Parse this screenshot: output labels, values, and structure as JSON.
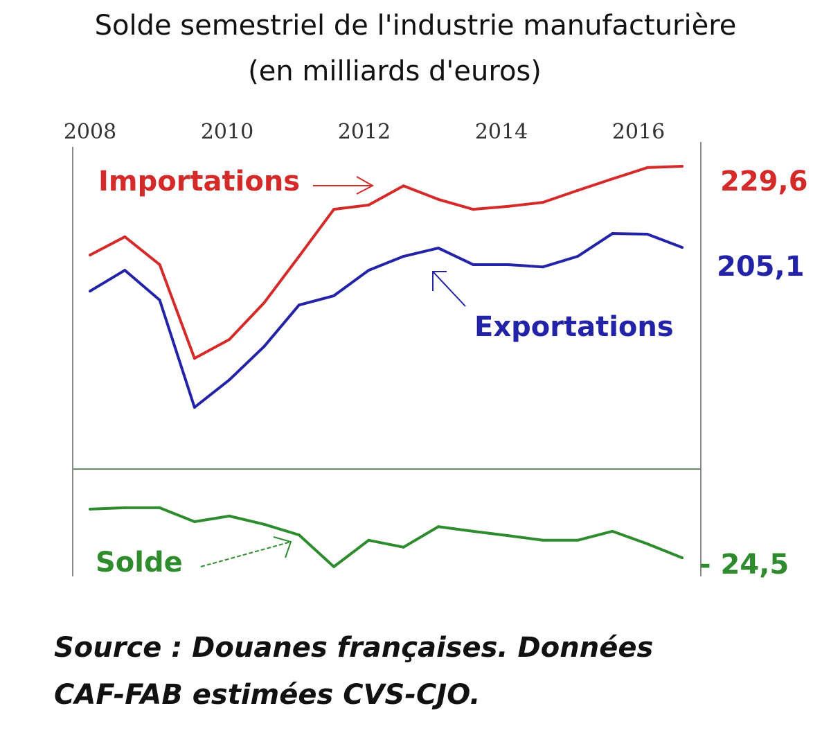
{
  "title": "Solde semestriel de l'industrie manufacturière",
  "subtitle": "(en milliards d'euros)",
  "source_line1": "Source : Douanes françaises. Données",
  "source_line2": "CAF-FAB estimées CVS-CJO.",
  "chart_data": {
    "type": "line",
    "title": "Solde semestriel de l'industrie manufacturière (en milliards d'euros)",
    "x_ticks": [
      "2008",
      "2010",
      "2012",
      "2014",
      "2016"
    ],
    "x": [
      "2008 S1",
      "2008 S2",
      "2009 S1",
      "2009 S2",
      "2010 S1",
      "2010 S2",
      "2011 S1",
      "2011 S2",
      "2012 S1",
      "2012 S2",
      "2013 S1",
      "2013 S2",
      "2014 S1",
      "2014 S2",
      "2015 S1",
      "2015 S2",
      "2016 S1",
      "2016 S2"
    ],
    "grid": false,
    "series": [
      {
        "name": "Importations",
        "color": "#d42a2a",
        "end_label": "229,6",
        "values": [
          202.8,
          208.3,
          199.9,
          171.6,
          177.3,
          188.4,
          202.4,
          216.6,
          217.9,
          223.7,
          219.6,
          216.6,
          217.5,
          218.7,
          222.3,
          225.8,
          229.2,
          229.6
        ]
      },
      {
        "name": "Exportations",
        "color": "#2323a8",
        "end_label": "205,1",
        "values": [
          191.9,
          198.2,
          189.2,
          156.8,
          165.1,
          175.2,
          187.7,
          190.5,
          198.2,
          202.4,
          204.9,
          199.9,
          199.9,
          199.2,
          202.4,
          209.3,
          209.1,
          205.1
        ]
      },
      {
        "name": "Solde",
        "color": "#2e8b2e",
        "end_label": "- 24,5",
        "values": [
          -9.8,
          -9.4,
          -9.4,
          -13.6,
          -11.9,
          -14.4,
          -17.6,
          -27.2,
          -19.2,
          -21.3,
          -15.1,
          -16.5,
          -17.8,
          -19.2,
          -19.2,
          -16.5,
          -20.3,
          -24.5
        ]
      }
    ]
  }
}
